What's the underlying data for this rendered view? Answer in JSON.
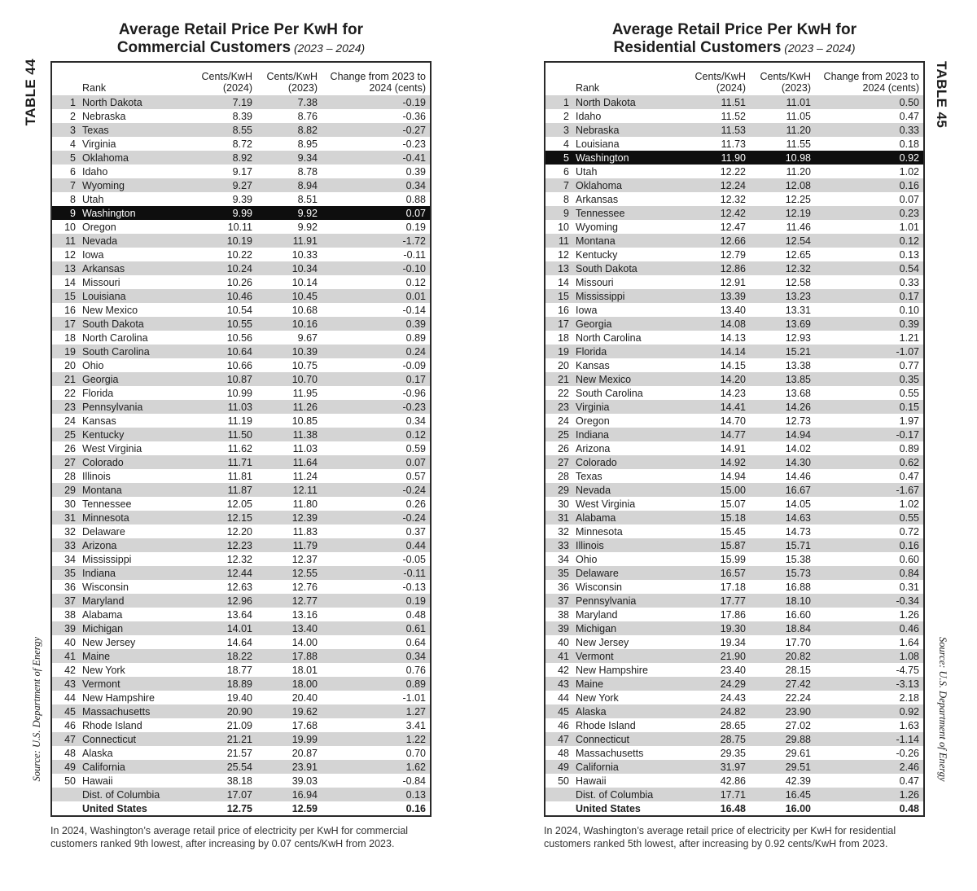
{
  "colors": {
    "stripe": "#d4d4d4",
    "highlight_bg": "#0e0e0e",
    "highlight_text": "#ffffff",
    "border": "#2a2a2a",
    "text": "#1d1d1d"
  },
  "tables": [
    {
      "side_label": "TABLE 44",
      "title_line1": "Average Retail Price Per KwH for",
      "title_line2_bold": "Commercial Customers",
      "title_line2_years": " (2023 – 2024)",
      "headers": {
        "rank": "Rank",
        "c2024": "Cents/KwH\n(2024)",
        "c2023": "Cents/KwH\n(2023)",
        "change": "Change from 2023 to\n2024 (cents)"
      },
      "source": "Source: U.S. Department of Energy",
      "footnote": "In 2024, Washington’s average retail price of electricity per KwH for commercial customers ranked 9th lowest, after increasing by 0.07 cents/KwH from 2023.",
      "rows": [
        {
          "rank": "1",
          "state": "North Dakota",
          "v2024": "7.19",
          "v2023": "7.38",
          "change": "-0.19"
        },
        {
          "rank": "2",
          "state": "Nebraska",
          "v2024": "8.39",
          "v2023": "8.76",
          "change": "-0.36"
        },
        {
          "rank": "3",
          "state": "Texas",
          "v2024": "8.55",
          "v2023": "8.82",
          "change": "-0.27"
        },
        {
          "rank": "4",
          "state": "Virginia",
          "v2024": "8.72",
          "v2023": "8.95",
          "change": "-0.23"
        },
        {
          "rank": "5",
          "state": "Oklahoma",
          "v2024": "8.92",
          "v2023": "9.34",
          "change": "-0.41"
        },
        {
          "rank": "6",
          "state": "Idaho",
          "v2024": "9.17",
          "v2023": "8.78",
          "change": "0.39"
        },
        {
          "rank": "7",
          "state": "Wyoming",
          "v2024": "9.27",
          "v2023": "8.94",
          "change": "0.34"
        },
        {
          "rank": "8",
          "state": "Utah",
          "v2024": "9.39",
          "v2023": "8.51",
          "change": "0.88"
        },
        {
          "rank": "9",
          "state": "Washington",
          "v2024": "9.99",
          "v2023": "9.92",
          "change": "0.07",
          "hl": true
        },
        {
          "rank": "10",
          "state": "Oregon",
          "v2024": "10.11",
          "v2023": "9.92",
          "change": "0.19"
        },
        {
          "rank": "11",
          "state": "Nevada",
          "v2024": "10.19",
          "v2023": "11.91",
          "change": "-1.72"
        },
        {
          "rank": "12",
          "state": "Iowa",
          "v2024": "10.22",
          "v2023": "10.33",
          "change": "-0.11"
        },
        {
          "rank": "13",
          "state": "Arkansas",
          "v2024": "10.24",
          "v2023": "10.34",
          "change": "-0.10"
        },
        {
          "rank": "14",
          "state": "Missouri",
          "v2024": "10.26",
          "v2023": "10.14",
          "change": "0.12"
        },
        {
          "rank": "15",
          "state": "Louisiana",
          "v2024": "10.46",
          "v2023": "10.45",
          "change": "0.01"
        },
        {
          "rank": "16",
          "state": "New Mexico",
          "v2024": "10.54",
          "v2023": "10.68",
          "change": "-0.14"
        },
        {
          "rank": "17",
          "state": "South Dakota",
          "v2024": "10.55",
          "v2023": "10.16",
          "change": "0.39"
        },
        {
          "rank": "18",
          "state": "North Carolina",
          "v2024": "10.56",
          "v2023": "9.67",
          "change": "0.89"
        },
        {
          "rank": "19",
          "state": "South Carolina",
          "v2024": "10.64",
          "v2023": "10.39",
          "change": "0.24"
        },
        {
          "rank": "20",
          "state": "Ohio",
          "v2024": "10.66",
          "v2023": "10.75",
          "change": "-0.09"
        },
        {
          "rank": "21",
          "state": "Georgia",
          "v2024": "10.87",
          "v2023": "10.70",
          "change": "0.17"
        },
        {
          "rank": "22",
          "state": "Florida",
          "v2024": "10.99",
          "v2023": "11.95",
          "change": "-0.96"
        },
        {
          "rank": "23",
          "state": "Pennsylvania",
          "v2024": "11.03",
          "v2023": "11.26",
          "change": "-0.23"
        },
        {
          "rank": "24",
          "state": "Kansas",
          "v2024": "11.19",
          "v2023": "10.85",
          "change": "0.34"
        },
        {
          "rank": "25",
          "state": "Kentucky",
          "v2024": "11.50",
          "v2023": "11.38",
          "change": "0.12"
        },
        {
          "rank": "26",
          "state": "West Virginia",
          "v2024": "11.62",
          "v2023": "11.03",
          "change": "0.59"
        },
        {
          "rank": "27",
          "state": "Colorado",
          "v2024": "11.71",
          "v2023": "11.64",
          "change": "0.07"
        },
        {
          "rank": "28",
          "state": "Illinois",
          "v2024": "11.81",
          "v2023": "11.24",
          "change": "0.57"
        },
        {
          "rank": "29",
          "state": "Montana",
          "v2024": "11.87",
          "v2023": "12.11",
          "change": "-0.24"
        },
        {
          "rank": "30",
          "state": "Tennessee",
          "v2024": "12.05",
          "v2023": "11.80",
          "change": "0.26"
        },
        {
          "rank": "31",
          "state": "Minnesota",
          "v2024": "12.15",
          "v2023": "12.39",
          "change": "-0.24"
        },
        {
          "rank": "32",
          "state": "Delaware",
          "v2024": "12.20",
          "v2023": "11.83",
          "change": "0.37"
        },
        {
          "rank": "33",
          "state": "Arizona",
          "v2024": "12.23",
          "v2023": "11.79",
          "change": "0.44"
        },
        {
          "rank": "34",
          "state": "Mississippi",
          "v2024": "12.32",
          "v2023": "12.37",
          "change": "-0.05"
        },
        {
          "rank": "35",
          "state": "Indiana",
          "v2024": "12.44",
          "v2023": "12.55",
          "change": "-0.11"
        },
        {
          "rank": "36",
          "state": "Wisconsin",
          "v2024": "12.63",
          "v2023": "12.76",
          "change": "-0.13"
        },
        {
          "rank": "37",
          "state": "Maryland",
          "v2024": "12.96",
          "v2023": "12.77",
          "change": "0.19"
        },
        {
          "rank": "38",
          "state": "Alabama",
          "v2024": "13.64",
          "v2023": "13.16",
          "change": "0.48"
        },
        {
          "rank": "39",
          "state": "Michigan",
          "v2024": "14.01",
          "v2023": "13.40",
          "change": "0.61"
        },
        {
          "rank": "40",
          "state": "New Jersey",
          "v2024": "14.64",
          "v2023": "14.00",
          "change": "0.64"
        },
        {
          "rank": "41",
          "state": "Maine",
          "v2024": "18.22",
          "v2023": "17.88",
          "change": "0.34"
        },
        {
          "rank": "42",
          "state": "New York",
          "v2024": "18.77",
          "v2023": "18.01",
          "change": "0.76"
        },
        {
          "rank": "43",
          "state": "Vermont",
          "v2024": "18.89",
          "v2023": "18.00",
          "change": "0.89"
        },
        {
          "rank": "44",
          "state": "New Hampshire",
          "v2024": "19.40",
          "v2023": "20.40",
          "change": "-1.01"
        },
        {
          "rank": "45",
          "state": "Massachusetts",
          "v2024": "20.90",
          "v2023": "19.62",
          "change": "1.27"
        },
        {
          "rank": "46",
          "state": "Rhode Island",
          "v2024": "21.09",
          "v2023": "17.68",
          "change": "3.41"
        },
        {
          "rank": "47",
          "state": "Connecticut",
          "v2024": "21.21",
          "v2023": "19.99",
          "change": "1.22"
        },
        {
          "rank": "48",
          "state": "Alaska",
          "v2024": "21.57",
          "v2023": "20.87",
          "change": "0.70"
        },
        {
          "rank": "49",
          "state": "California",
          "v2024": "25.54",
          "v2023": "23.91",
          "change": "1.62"
        },
        {
          "rank": "50",
          "state": "Hawaii",
          "v2024": "38.18",
          "v2023": "39.03",
          "change": "-0.84"
        },
        {
          "rank": "",
          "state": "Dist. of Columbia",
          "v2024": "17.07",
          "v2023": "16.94",
          "change": "0.13"
        },
        {
          "rank": "",
          "state": "United States",
          "v2024": "12.75",
          "v2023": "12.59",
          "change": "0.16",
          "total": true
        }
      ]
    },
    {
      "side_label": "TABLE 45",
      "title_line1": "Average Retail Price Per KwH for",
      "title_line2_bold": "Residential Customers",
      "title_line2_years": " (2023 – 2024)",
      "headers": {
        "rank": "Rank",
        "c2024": "Cents/KwH\n(2024)",
        "c2023": "Cents/KwH\n(2023)",
        "change": "Change from 2023 to\n2024 (cents)"
      },
      "source": "Source: U.S. Department of Energy",
      "footnote": "In 2024, Washington’s average retail price of electricity per KwH for residential customers ranked 5th lowest, after increasing by 0.92 cents/KwH from 2023.",
      "rows": [
        {
          "rank": "1",
          "state": "North Dakota",
          "v2024": "11.51",
          "v2023": "11.01",
          "change": "0.50"
        },
        {
          "rank": "2",
          "state": "Idaho",
          "v2024": "11.52",
          "v2023": "11.05",
          "change": "0.47"
        },
        {
          "rank": "3",
          "state": "Nebraska",
          "v2024": "11.53",
          "v2023": "11.20",
          "change": "0.33"
        },
        {
          "rank": "4",
          "state": "Louisiana",
          "v2024": "11.73",
          "v2023": "11.55",
          "change": "0.18"
        },
        {
          "rank": "5",
          "state": "Washington",
          "v2024": "11.90",
          "v2023": "10.98",
          "change": "0.92",
          "hl": true
        },
        {
          "rank": "6",
          "state": "Utah",
          "v2024": "12.22",
          "v2023": "11.20",
          "change": "1.02"
        },
        {
          "rank": "7",
          "state": "Oklahoma",
          "v2024": "12.24",
          "v2023": "12.08",
          "change": "0.16"
        },
        {
          "rank": "8",
          "state": "Arkansas",
          "v2024": "12.32",
          "v2023": "12.25",
          "change": "0.07"
        },
        {
          "rank": "9",
          "state": "Tennessee",
          "v2024": "12.42",
          "v2023": "12.19",
          "change": "0.23"
        },
        {
          "rank": "10",
          "state": "Wyoming",
          "v2024": "12.47",
          "v2023": "11.46",
          "change": "1.01"
        },
        {
          "rank": "11",
          "state": "Montana",
          "v2024": "12.66",
          "v2023": "12.54",
          "change": "0.12"
        },
        {
          "rank": "12",
          "state": "Kentucky",
          "v2024": "12.79",
          "v2023": "12.65",
          "change": "0.13"
        },
        {
          "rank": "13",
          "state": "South Dakota",
          "v2024": "12.86",
          "v2023": "12.32",
          "change": "0.54"
        },
        {
          "rank": "14",
          "state": "Missouri",
          "v2024": "12.91",
          "v2023": "12.58",
          "change": "0.33"
        },
        {
          "rank": "15",
          "state": "Mississippi",
          "v2024": "13.39",
          "v2023": "13.23",
          "change": "0.17"
        },
        {
          "rank": "16",
          "state": "Iowa",
          "v2024": "13.40",
          "v2023": "13.31",
          "change": "0.10"
        },
        {
          "rank": "17",
          "state": "Georgia",
          "v2024": "14.08",
          "v2023": "13.69",
          "change": "0.39"
        },
        {
          "rank": "18",
          "state": "North Carolina",
          "v2024": "14.13",
          "v2023": "12.93",
          "change": "1.21"
        },
        {
          "rank": "19",
          "state": "Florida",
          "v2024": "14.14",
          "v2023": "15.21",
          "change": "-1.07"
        },
        {
          "rank": "20",
          "state": "Kansas",
          "v2024": "14.15",
          "v2023": "13.38",
          "change": "0.77"
        },
        {
          "rank": "21",
          "state": "New Mexico",
          "v2024": "14.20",
          "v2023": "13.85",
          "change": "0.35"
        },
        {
          "rank": "22",
          "state": "South Carolina",
          "v2024": "14.23",
          "v2023": "13.68",
          "change": "0.55"
        },
        {
          "rank": "23",
          "state": "Virginia",
          "v2024": "14.41",
          "v2023": "14.26",
          "change": "0.15"
        },
        {
          "rank": "24",
          "state": "Oregon",
          "v2024": "14.70",
          "v2023": "12.73",
          "change": "1.97"
        },
        {
          "rank": "25",
          "state": "Indiana",
          "v2024": "14.77",
          "v2023": "14.94",
          "change": "-0.17"
        },
        {
          "rank": "26",
          "state": "Arizona",
          "v2024": "14.91",
          "v2023": "14.02",
          "change": "0.89"
        },
        {
          "rank": "27",
          "state": "Colorado",
          "v2024": "14.92",
          "v2023": "14.30",
          "change": "0.62"
        },
        {
          "rank": "28",
          "state": "Texas",
          "v2024": "14.94",
          "v2023": "14.46",
          "change": "0.47"
        },
        {
          "rank": "29",
          "state": "Nevada",
          "v2024": "15.00",
          "v2023": "16.67",
          "change": "-1.67"
        },
        {
          "rank": "30",
          "state": "West Virginia",
          "v2024": "15.07",
          "v2023": "14.05",
          "change": "1.02"
        },
        {
          "rank": "31",
          "state": "Alabama",
          "v2024": "15.18",
          "v2023": "14.63",
          "change": "0.55"
        },
        {
          "rank": "32",
          "state": "Minnesota",
          "v2024": "15.45",
          "v2023": "14.73",
          "change": "0.72"
        },
        {
          "rank": "33",
          "state": "Illinois",
          "v2024": "15.87",
          "v2023": "15.71",
          "change": "0.16"
        },
        {
          "rank": "34",
          "state": "Ohio",
          "v2024": "15.99",
          "v2023": "15.38",
          "change": "0.60"
        },
        {
          "rank": "35",
          "state": "Delaware",
          "v2024": "16.57",
          "v2023": "15.73",
          "change": "0.84"
        },
        {
          "rank": "36",
          "state": "Wisconsin",
          "v2024": "17.18",
          "v2023": "16.88",
          "change": "0.31"
        },
        {
          "rank": "37",
          "state": "Pennsylvania",
          "v2024": "17.77",
          "v2023": "18.10",
          "change": "-0.34"
        },
        {
          "rank": "38",
          "state": "Maryland",
          "v2024": "17.86",
          "v2023": "16.60",
          "change": "1.26"
        },
        {
          "rank": "39",
          "state": "Michigan",
          "v2024": "19.30",
          "v2023": "18.84",
          "change": "0.46"
        },
        {
          "rank": "40",
          "state": "New Jersey",
          "v2024": "19.34",
          "v2023": "17.70",
          "change": "1.64"
        },
        {
          "rank": "41",
          "state": "Vermont",
          "v2024": "21.90",
          "v2023": "20.82",
          "change": "1.08"
        },
        {
          "rank": "42",
          "state": "New Hampshire",
          "v2024": "23.40",
          "v2023": "28.15",
          "change": "-4.75"
        },
        {
          "rank": "43",
          "state": "Maine",
          "v2024": "24.29",
          "v2023": "27.42",
          "change": "-3.13"
        },
        {
          "rank": "44",
          "state": "New York",
          "v2024": "24.43",
          "v2023": "22.24",
          "change": "2.18"
        },
        {
          "rank": "45",
          "state": "Alaska",
          "v2024": "24.82",
          "v2023": "23.90",
          "change": "0.92"
        },
        {
          "rank": "46",
          "state": "Rhode Island",
          "v2024": "28.65",
          "v2023": "27.02",
          "change": "1.63"
        },
        {
          "rank": "47",
          "state": "Connecticut",
          "v2024": "28.75",
          "v2023": "29.88",
          "change": "-1.14"
        },
        {
          "rank": "48",
          "state": "Massachusetts",
          "v2024": "29.35",
          "v2023": "29.61",
          "change": "-0.26"
        },
        {
          "rank": "49",
          "state": "California",
          "v2024": "31.97",
          "v2023": "29.51",
          "change": "2.46"
        },
        {
          "rank": "50",
          "state": "Hawaii",
          "v2024": "42.86",
          "v2023": "42.39",
          "change": "0.47"
        },
        {
          "rank": "",
          "state": "Dist. of Columbia",
          "v2024": "17.71",
          "v2023": "16.45",
          "change": "1.26"
        },
        {
          "rank": "",
          "state": "United States",
          "v2024": "16.48",
          "v2023": "16.00",
          "change": "0.48",
          "total": true
        }
      ]
    }
  ]
}
